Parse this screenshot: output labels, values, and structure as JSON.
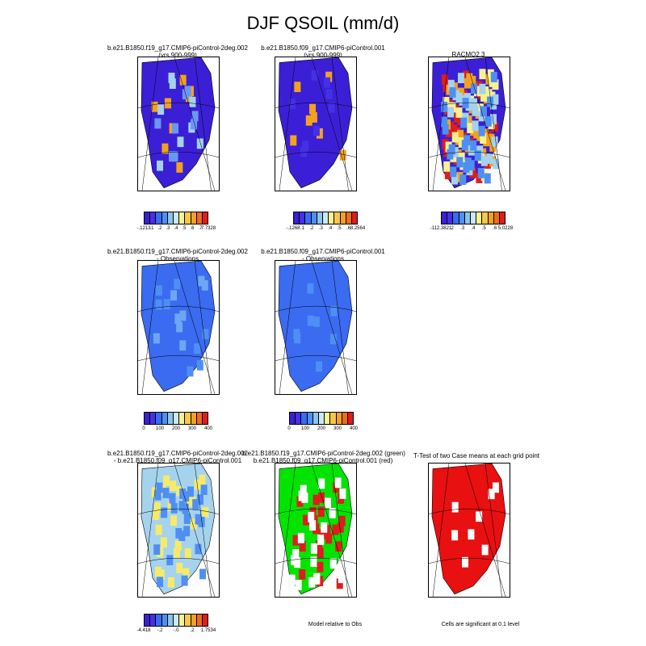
{
  "title": "DJF QSOIL (mm/d)",
  "panels": [
    {
      "id": "p1",
      "title_line1": "b.e21.B1850.f19_g17.CMIP6-piControl-2deg.002",
      "title_line2": "(yrs 900-999)",
      "fill": "#3b1fd6",
      "accents": [
        {
          "c": "#f4a21c"
        },
        {
          "c": "#a5d3ee"
        },
        {
          "c": "#6a97f5"
        }
      ],
      "colorbar": {
        "colors": [
          "#3b1fd6",
          "#4530e8",
          "#3a6bf0",
          "#4e8ff4",
          "#8cc3ea",
          "#c8e8f5",
          "#f7f28e",
          "#f5c84a",
          "#f4a21c",
          "#f06a20",
          "#e01c1c"
        ],
        "labels": [
          "-.1213",
          ".1",
          ".2",
          ".3",
          ".4",
          ".5",
          ".6",
          ".7",
          "7.7328"
        ]
      }
    },
    {
      "id": "p2",
      "title_line1": "b.e21.B1850.f09_g17.CMIP6-piControl.001",
      "title_line2": "(yrs 900-999)",
      "fill": "#3b1fd6",
      "accents": [
        {
          "c": "#f4a21c"
        },
        {
          "c": "#4530e8"
        }
      ],
      "colorbar": {
        "colors": [
          "#3b1fd6",
          "#4530e8",
          "#3a6bf0",
          "#4e8ff4",
          "#8cc3ea",
          "#c8e8f5",
          "#f7f28e",
          "#f5c84a",
          "#f4a21c",
          "#f06a20",
          "#e01c1c"
        ],
        "labels": [
          "-.1268",
          ".1",
          ".2",
          ".3",
          ".4",
          ".5",
          ".6",
          "8.2564"
        ]
      }
    },
    {
      "id": "p3",
      "title_line1": "RACMO2.3",
      "title_line2": "",
      "fill": "#3b1fd6",
      "accents": [
        {
          "c": "#e01c1c"
        },
        {
          "c": "#f4a21c"
        },
        {
          "c": "#f7f28e"
        },
        {
          "c": "#a5d3ee"
        },
        {
          "c": "#4e8ff4"
        }
      ],
      "colorbar": {
        "colors": [
          "#3b1fd6",
          "#4530e8",
          "#3a6bf0",
          "#4e8ff4",
          "#8cc3ea",
          "#c8e8f5",
          "#f7f28e",
          "#f5c84a",
          "#f4a21c",
          "#f06a20",
          "#e01c1c"
        ],
        "labels": [
          "-112.3821",
          ".2",
          ".3",
          ".4",
          ".5",
          ".6",
          "5.0228"
        ]
      }
    },
    {
      "id": "p4",
      "title_line1": "b.e21.B1850.f19_g17.CMIP6-piControl-2deg.002",
      "title_line2": "- Observations",
      "fill": "#3a6bf0",
      "accents": [
        {
          "c": "#4e8ff4"
        },
        {
          "c": "#6ea6f2"
        }
      ],
      "colorbar": {
        "colors": [
          "#3b1fd6",
          "#4530e8",
          "#3a6bf0",
          "#4e8ff4",
          "#8cc3ea",
          "#c8e8f5",
          "#f7f28e",
          "#f5c84a",
          "#f4a21c",
          "#f06a20",
          "#e01c1c"
        ],
        "labels": [
          "0",
          "100",
          "200",
          "300",
          "400"
        ]
      }
    },
    {
      "id": "p5",
      "title_line1": "b.e21.B1850.f09_g17.CMIP6-piControl.001",
      "title_line2": "- Observations",
      "fill": "#3a6bf0",
      "accents": [
        {
          "c": "#4e8ff4"
        }
      ],
      "colorbar": {
        "colors": [
          "#3b1fd6",
          "#4530e8",
          "#3a6bf0",
          "#4e8ff4",
          "#8cc3ea",
          "#c8e8f5",
          "#f7f28e",
          "#f5c84a",
          "#f4a21c",
          "#f06a20",
          "#e01c1c"
        ],
        "labels": [
          "0",
          "100",
          "200",
          "300",
          "400"
        ]
      }
    },
    {
      "id": "p6",
      "title_line1": "b.e21.B1850.f19_g17.CMIP6-piControl-2deg.002",
      "title_line2": "- b.e21.B1850.f09_g17.CMIP6-piControl.001",
      "fill": "#a5d3ee",
      "accents": [
        {
          "c": "#f7ea6a"
        },
        {
          "c": "#4e8ff4"
        }
      ],
      "colorbar": {
        "colors": [
          "#3b1fd6",
          "#4530e8",
          "#3a6bf0",
          "#4e8ff4",
          "#8cc3ea",
          "#c8e8f5",
          "#f7f28e",
          "#f5c84a",
          "#f4a21c",
          "#f06a20",
          "#e01c1c"
        ],
        "labels": [
          "-4.418",
          "-.2",
          "-.0",
          ".2",
          "1.7534"
        ]
      }
    },
    {
      "id": "p7",
      "title_line1": "b.e21.B1850.f19_g17.CMIP6-piControl-2deg.002 (green)",
      "title_line2": "b.e21.B1850.f09_g17.CMIP6-piControl.001 (red)",
      "fill": "#00e400",
      "accents": [
        {
          "c": "#e01c1c"
        },
        {
          "c": "#ffffff"
        }
      ],
      "note": "Model relative to Obs"
    },
    {
      "id": "p8",
      "title_line1": "T-Test of two Case means at each grid point",
      "title_line2": "",
      "fill": "#e81010",
      "accents": [
        {
          "c": "#ffffff"
        }
      ],
      "note": "Cells are significant at 0.1 level"
    }
  ]
}
